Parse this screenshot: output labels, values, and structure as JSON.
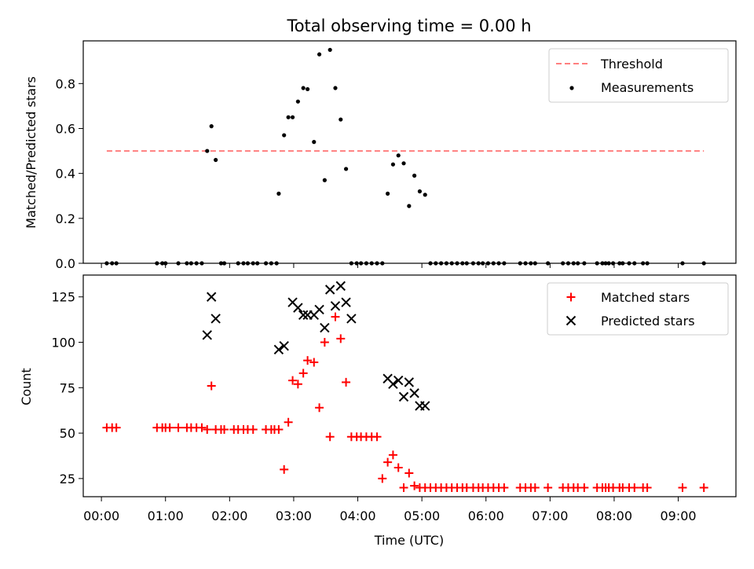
{
  "title": "Total observing time = 0.00 h",
  "chart_data": [
    {
      "type": "scatter",
      "ylabel": "Matched/Predicted stars",
      "xlabel": "",
      "xlim": [
        "23:43",
        "09:54"
      ],
      "ylim": [
        0,
        0.99
      ],
      "yticks": [
        0.0,
        0.2,
        0.4,
        0.6,
        0.8
      ],
      "ytick_labels": [
        "0.0",
        "0.2",
        "0.4",
        "0.6",
        "0.8"
      ],
      "legend_position": "upper right",
      "grid": false,
      "threshold": {
        "name": "Threshold",
        "value": 0.5,
        "x_start": "00:05",
        "x_end": "09:24",
        "color": "#ff7f7f",
        "style": "dashed"
      },
      "series": [
        {
          "name": "Measurements",
          "color": "#000000",
          "x": [
            "00:05",
            "00:10",
            "00:14",
            "00:52",
            "00:57",
            "01:00",
            "01:12",
            "01:20",
            "01:24",
            "01:29",
            "01:34",
            "01:39",
            "01:43",
            "01:47",
            "01:52",
            "01:55",
            "02:08",
            "02:13",
            "02:17",
            "02:22",
            "02:26",
            "02:34",
            "02:39",
            "02:44",
            "02:46",
            "02:51",
            "02:55",
            "02:59",
            "03:04",
            "03:09",
            "03:13",
            "03:19",
            "03:24",
            "03:29",
            "03:34",
            "03:39",
            "03:44",
            "03:49",
            "03:54",
            "03:59",
            "04:03",
            "04:08",
            "04:13",
            "04:18",
            "04:23",
            "04:28",
            "04:33",
            "04:38",
            "04:43",
            "04:48",
            "04:53",
            "04:58",
            "05:03",
            "05:08",
            "05:13",
            "05:18",
            "05:23",
            "05:28",
            "05:33",
            "05:38",
            "05:42",
            "05:48",
            "05:53",
            "05:57",
            "06:02",
            "06:07",
            "06:12",
            "06:17",
            "06:32",
            "06:37",
            "06:42",
            "06:46",
            "06:58",
            "07:12",
            "07:17",
            "07:22",
            "07:26",
            "07:32",
            "07:44",
            "07:49",
            "07:52",
            "07:55",
            "07:59",
            "08:05",
            "08:08",
            "08:14",
            "08:19",
            "08:27",
            "08:31",
            "09:04",
            "09:24"
          ],
          "y": [
            0,
            0,
            0,
            0,
            0,
            0,
            0,
            0,
            0,
            0,
            0,
            0.5,
            0.61,
            0.46,
            0,
            0,
            0,
            0,
            0,
            0,
            0,
            0,
            0,
            0,
            0.31,
            0.57,
            0.65,
            0.65,
            0.72,
            0.78,
            0.775,
            0.54,
            0.93,
            0.37,
            0.95,
            0.78,
            0.64,
            0.42,
            0,
            0,
            0,
            0,
            0,
            0,
            0,
            0.31,
            0.44,
            0.48,
            0.445,
            0.255,
            0.39,
            0.32,
            0.305,
            0,
            0,
            0,
            0,
            0,
            0,
            0,
            0,
            0,
            0,
            0,
            0,
            0,
            0,
            0,
            0,
            0,
            0,
            0,
            0,
            0,
            0,
            0,
            0,
            0,
            0,
            0,
            0,
            0,
            0,
            0,
            0,
            0,
            0,
            0,
            0,
            0,
            0
          ]
        }
      ]
    },
    {
      "type": "scatter",
      "ylabel": "Count",
      "xlabel": "Time (UTC)",
      "xlim": [
        "23:43",
        "09:54"
      ],
      "ylim": [
        15,
        137
      ],
      "yticks": [
        25,
        50,
        75,
        100,
        125
      ],
      "ytick_labels": [
        "25",
        "50",
        "75",
        "100",
        "125"
      ],
      "xticks": [
        "00:00",
        "01:00",
        "02:00",
        "03:00",
        "04:00",
        "05:00",
        "06:00",
        "07:00",
        "08:00",
        "09:00"
      ],
      "legend_position": "upper right",
      "grid": false,
      "series": [
        {
          "name": "Matched stars",
          "color": "#ff0000",
          "marker": "plus",
          "x": [
            "00:05",
            "00:10",
            "00:14",
            "00:52",
            "00:57",
            "01:00",
            "01:04",
            "01:12",
            "01:20",
            "01:24",
            "01:29",
            "01:34",
            "01:39",
            "01:43",
            "01:47",
            "01:52",
            "01:55",
            "02:04",
            "02:08",
            "02:13",
            "02:17",
            "02:22",
            "02:34",
            "02:39",
            "02:42",
            "02:46",
            "02:51",
            "02:55",
            "02:59",
            "03:04",
            "03:09",
            "03:13",
            "03:19",
            "03:24",
            "03:29",
            "03:34",
            "03:39",
            "03:44",
            "03:49",
            "03:54",
            "03:59",
            "04:03",
            "04:08",
            "04:13",
            "04:18",
            "04:23",
            "04:28",
            "04:33",
            "04:38",
            "04:43",
            "04:48",
            "04:53",
            "04:58",
            "05:03",
            "05:08",
            "05:13",
            "05:18",
            "05:23",
            "05:28",
            "05:33",
            "05:38",
            "05:42",
            "05:48",
            "05:53",
            "05:57",
            "06:02",
            "06:07",
            "06:12",
            "06:17",
            "06:32",
            "06:37",
            "06:42",
            "06:46",
            "06:58",
            "07:12",
            "07:17",
            "07:22",
            "07:26",
            "07:32",
            "07:44",
            "07:49",
            "07:52",
            "07:55",
            "07:59",
            "08:05",
            "08:08",
            "08:14",
            "08:19",
            "08:27",
            "08:31",
            "09:04",
            "09:24"
          ],
          "y": [
            53,
            53,
            53,
            53,
            53,
            53,
            53,
            53,
            53,
            53,
            53,
            53,
            52,
            76,
            52,
            52,
            52,
            52,
            52,
            52,
            52,
            52,
            52,
            52,
            52,
            52,
            30,
            56,
            79,
            77,
            83,
            90,
            89,
            64,
            100,
            48,
            114,
            102,
            78,
            48,
            48,
            48,
            48,
            48,
            48,
            25,
            34,
            38,
            31,
            20,
            28,
            21,
            20,
            20,
            20,
            20,
            20,
            20,
            20,
            20,
            20,
            20,
            20,
            20,
            20,
            20,
            20,
            20,
            20,
            20,
            20,
            20,
            20,
            20,
            20,
            20,
            20,
            20,
            20,
            20,
            20,
            20,
            20,
            20,
            20,
            20,
            20,
            20,
            20,
            20,
            20,
            20
          ]
        },
        {
          "name": "Predicted stars",
          "color": "#000000",
          "marker": "x",
          "x": [
            "01:39",
            "01:43",
            "01:47",
            "02:46",
            "02:51",
            "02:59",
            "03:04",
            "03:09",
            "03:13",
            "03:19",
            "03:24",
            "03:29",
            "03:34",
            "03:39",
            "03:44",
            "03:49",
            "03:54",
            "04:28",
            "04:33",
            "04:38",
            "04:43",
            "04:48",
            "04:53",
            "04:58",
            "05:03"
          ],
          "y": [
            104,
            125,
            113,
            96,
            98,
            122,
            119,
            115,
            115,
            115,
            118,
            108,
            129,
            120,
            131,
            122,
            113,
            80,
            77,
            79,
            70,
            78,
            72,
            65,
            65
          ]
        }
      ]
    }
  ]
}
